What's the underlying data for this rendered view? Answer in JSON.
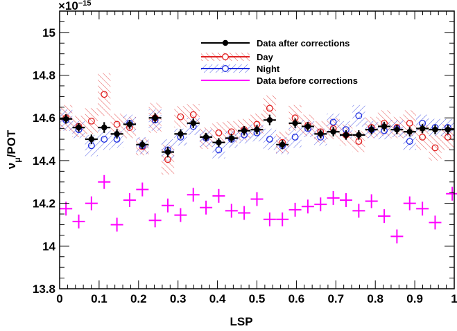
{
  "chart_data": {
    "type": "scatter",
    "title": "",
    "xlabel": "LSP",
    "ylabel": "ν_μ/POT",
    "ylabel_main": "ν",
    "ylabel_sub": "μ",
    "ylabel_tail": "/POT",
    "y_exponent_label": "×10",
    "y_exponent_power": "−15",
    "xlim": [
      0,
      1
    ],
    "ylim": [
      13.8,
      15.1
    ],
    "x_ticks": [
      "0",
      "0.1",
      "0.2",
      "0.3",
      "0.4",
      "0.5",
      "0.6",
      "0.7",
      "0.8",
      "0.9",
      "1"
    ],
    "x_tick_values": [
      0,
      0.1,
      0.2,
      0.3,
      0.4,
      0.5,
      0.6,
      0.7,
      0.8,
      0.9,
      1.0
    ],
    "y_ticks": [
      "13.8",
      "14",
      "14.2",
      "14.4",
      "14.6",
      "14.8",
      "15"
    ],
    "y_tick_values": [
      13.8,
      14.0,
      14.2,
      14.4,
      14.6,
      14.8,
      15.0
    ],
    "grid": false,
    "legend_position": "top-right",
    "x": [
      0.0161,
      0.0484,
      0.0806,
      0.1129,
      0.1452,
      0.1774,
      0.2097,
      0.2419,
      0.2742,
      0.3065,
      0.3387,
      0.371,
      0.4032,
      0.4355,
      0.4677,
      0.5,
      0.5323,
      0.5645,
      0.5968,
      0.629,
      0.6613,
      0.6935,
      0.7258,
      0.7581,
      0.7903,
      0.8226,
      0.8548,
      0.8871,
      0.9194,
      0.9516,
      0.9839
    ],
    "series": [
      {
        "name": "Data after corrections",
        "color": "#000000",
        "marker": "filled-circle",
        "values": [
          14.595,
          14.555,
          14.5,
          14.555,
          14.525,
          14.57,
          14.475,
          14.6,
          14.44,
          14.525,
          14.575,
          14.51,
          14.485,
          14.505,
          14.54,
          14.545,
          14.59,
          14.475,
          14.575,
          14.56,
          14.525,
          14.535,
          14.52,
          14.52,
          14.545,
          14.56,
          14.545,
          14.535,
          14.55,
          14.545,
          14.545
        ]
      },
      {
        "name": "Day",
        "color": "#e02020",
        "marker": "open-circle",
        "values": [
          14.6,
          14.56,
          14.585,
          14.71,
          14.57,
          14.555,
          14.465,
          14.6,
          14.405,
          14.605,
          14.615,
          14.505,
          14.53,
          14.535,
          14.545,
          14.57,
          14.645,
          14.485,
          14.6,
          14.565,
          14.535,
          14.55,
          14.52,
          14.49,
          14.555,
          14.575,
          14.555,
          14.575,
          14.51,
          14.46,
          14.51
        ]
      },
      {
        "name": "Night",
        "color": "#2030e0",
        "marker": "open-circle",
        "values": [
          14.59,
          14.545,
          14.47,
          14.5,
          14.5,
          14.575,
          14.47,
          14.59,
          14.45,
          14.51,
          14.56,
          14.505,
          14.45,
          14.5,
          14.52,
          14.53,
          14.5,
          14.47,
          14.51,
          14.55,
          14.51,
          14.58,
          14.545,
          14.61,
          14.545,
          14.54,
          14.55,
          14.49,
          14.575,
          14.555,
          14.555
        ]
      },
      {
        "name": "Data before corrections",
        "color": "#ff00ff",
        "marker": "cross",
        "values": [
          14.175,
          14.115,
          14.2,
          14.3,
          14.1,
          14.215,
          14.265,
          14.12,
          14.19,
          14.145,
          14.24,
          14.18,
          14.235,
          14.165,
          14.155,
          14.22,
          14.125,
          14.125,
          14.17,
          14.185,
          14.195,
          14.225,
          14.215,
          14.165,
          14.21,
          14.14,
          14.045,
          14.2,
          14.175,
          14.11,
          14.165
        ]
      }
    ],
    "last_point_before_corrections": {
      "x": 0.995,
      "value": 14.245
    },
    "day_band_halfwidth": [
      0.06,
      0.05,
      0.06,
      0.1,
      0.05,
      0.05,
      0.04,
      0.07,
      0.07,
      0.05,
      0.05,
      0.05,
      0.05,
      0.05,
      0.05,
      0.05,
      0.06,
      0.05,
      0.06,
      0.05,
      0.05,
      0.05,
      0.05,
      0.05,
      0.05,
      0.06,
      0.05,
      0.06,
      0.06,
      0.06,
      0.06
    ],
    "night_band_halfwidth": [
      0.05,
      0.04,
      0.05,
      0.05,
      0.04,
      0.04,
      0.04,
      0.05,
      0.05,
      0.04,
      0.04,
      0.04,
      0.04,
      0.04,
      0.04,
      0.04,
      0.05,
      0.04,
      0.05,
      0.04,
      0.04,
      0.04,
      0.04,
      0.05,
      0.04,
      0.04,
      0.04,
      0.04,
      0.04,
      0.04,
      0.04
    ],
    "after_error": [
      0.022,
      0.02,
      0.022,
      0.025,
      0.022,
      0.02,
      0.02,
      0.022,
      0.025,
      0.022,
      0.022,
      0.02,
      0.02,
      0.02,
      0.022,
      0.022,
      0.025,
      0.022,
      0.022,
      0.02,
      0.02,
      0.022,
      0.022,
      0.022,
      0.022,
      0.022,
      0.022,
      0.022,
      0.022,
      0.022,
      0.022
    ],
    "before_error": [
      0.02,
      0.02,
      0.02,
      0.02,
      0.02,
      0.02,
      0.02,
      0.02,
      0.02,
      0.02,
      0.02,
      0.02,
      0.02,
      0.02,
      0.02,
      0.02,
      0.02,
      0.02,
      0.02,
      0.02,
      0.02,
      0.02,
      0.02,
      0.02,
      0.02,
      0.02,
      0.02,
      0.02,
      0.02,
      0.02,
      0.02
    ]
  }
}
